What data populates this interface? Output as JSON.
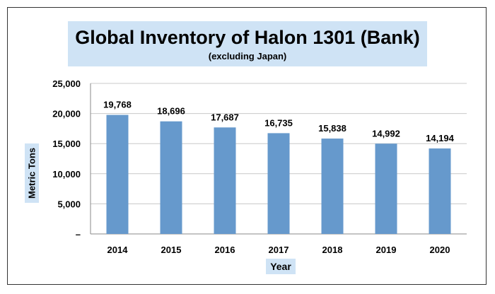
{
  "chart_data": {
    "type": "bar",
    "title": "Global Inventory of Halon 1301 (Bank)",
    "subtitle": "(excluding Japan)",
    "xlabel": "Year",
    "ylabel": "Metric Tons",
    "categories": [
      "2014",
      "2015",
      "2016",
      "2017",
      "2018",
      "2019",
      "2020"
    ],
    "values": [
      19768,
      18696,
      17687,
      16735,
      15838,
      14992,
      14194
    ],
    "data_labels": [
      "19,768",
      "18,696",
      "17,687",
      "16,735",
      "15,838",
      "14,992",
      "14,194"
    ],
    "ylim": [
      0,
      25000
    ],
    "yticks": [
      0,
      5000,
      10000,
      15000,
      20000,
      25000
    ],
    "ytick_labels": [
      "–",
      "5,000",
      "10,000",
      "15,000",
      "20,000",
      "25,000"
    ],
    "grid": true,
    "bar_color": "#6699cc",
    "label_background": "#cfe3f5"
  }
}
